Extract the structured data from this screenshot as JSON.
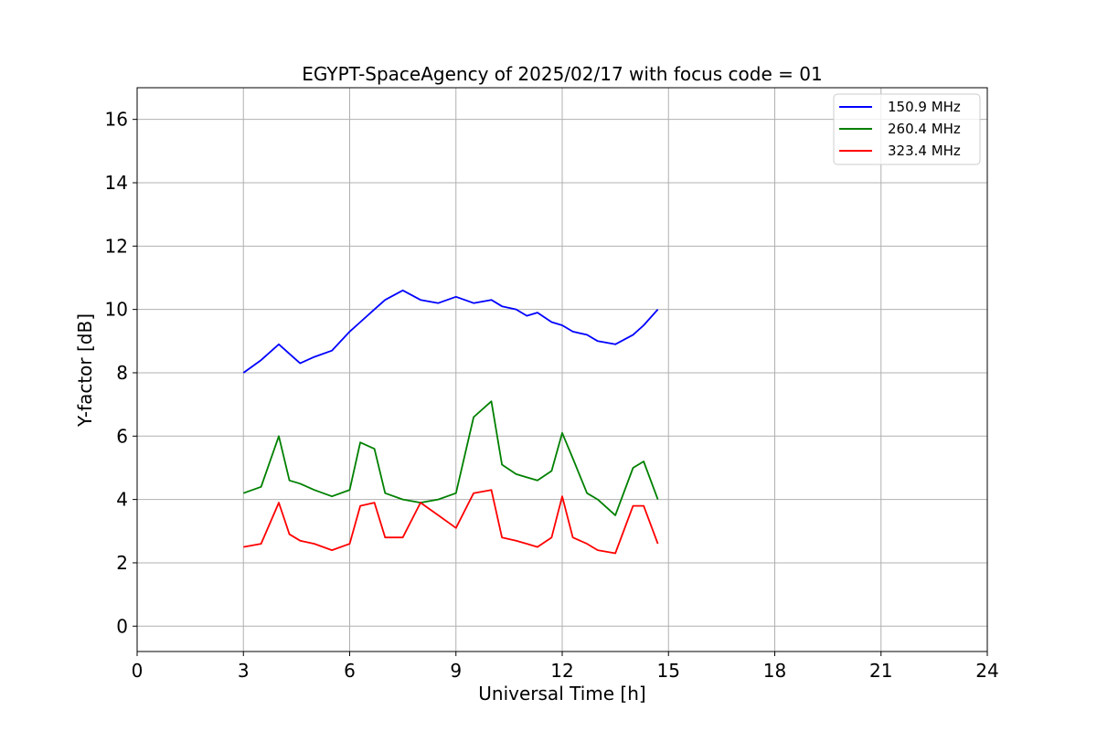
{
  "chart_data": {
    "type": "line",
    "title": "EGYPT-SpaceAgency of 2025/02/17 with focus code = 01",
    "xlabel": "Universal Time [h]",
    "ylabel": "Y-factor [dB]",
    "xlim": [
      0,
      24
    ],
    "ylim": [
      -0.8,
      17
    ],
    "xticks": [
      0,
      3,
      6,
      9,
      12,
      15,
      18,
      21,
      24
    ],
    "yticks": [
      0,
      2,
      4,
      6,
      8,
      10,
      12,
      14,
      16
    ],
    "grid": true,
    "legend_position": "top-right",
    "x": [
      3.0,
      3.5,
      4.0,
      4.3,
      4.6,
      5.0,
      5.5,
      6.0,
      6.3,
      6.7,
      7.0,
      7.5,
      8.0,
      8.5,
      9.0,
      9.5,
      10.0,
      10.3,
      10.7,
      11.0,
      11.3,
      11.7,
      12.0,
      12.3,
      12.7,
      13.0,
      13.5,
      14.0,
      14.3,
      14.7
    ],
    "series": [
      {
        "name": "150.9 MHz",
        "color": "#0000ff",
        "values": [
          8.0,
          8.4,
          8.9,
          8.6,
          8.3,
          8.5,
          8.7,
          9.3,
          9.6,
          10.0,
          10.3,
          10.6,
          10.3,
          10.2,
          10.4,
          10.2,
          10.3,
          10.1,
          10.0,
          9.8,
          9.9,
          9.6,
          9.5,
          9.3,
          9.2,
          9.0,
          8.9,
          9.2,
          9.5,
          10.0
        ]
      },
      {
        "name": "260.4 MHz",
        "color": "#008000",
        "values": [
          4.2,
          4.4,
          6.0,
          4.6,
          4.5,
          4.3,
          4.1,
          4.3,
          5.8,
          5.6,
          4.2,
          4.0,
          3.9,
          4.0,
          4.2,
          6.6,
          7.1,
          5.1,
          4.8,
          4.7,
          4.6,
          4.9,
          6.1,
          5.3,
          4.2,
          4.0,
          3.5,
          5.0,
          5.2,
          4.0
        ]
      },
      {
        "name": "323.4 MHz",
        "color": "#ff0000",
        "values": [
          2.5,
          2.6,
          3.9,
          2.9,
          2.7,
          2.6,
          2.4,
          2.6,
          3.8,
          3.9,
          2.8,
          2.8,
          3.9,
          3.5,
          3.1,
          4.2,
          4.3,
          2.8,
          2.7,
          2.6,
          2.5,
          2.8,
          4.1,
          2.8,
          2.6,
          2.4,
          2.3,
          3.8,
          3.8,
          2.6
        ]
      }
    ]
  }
}
